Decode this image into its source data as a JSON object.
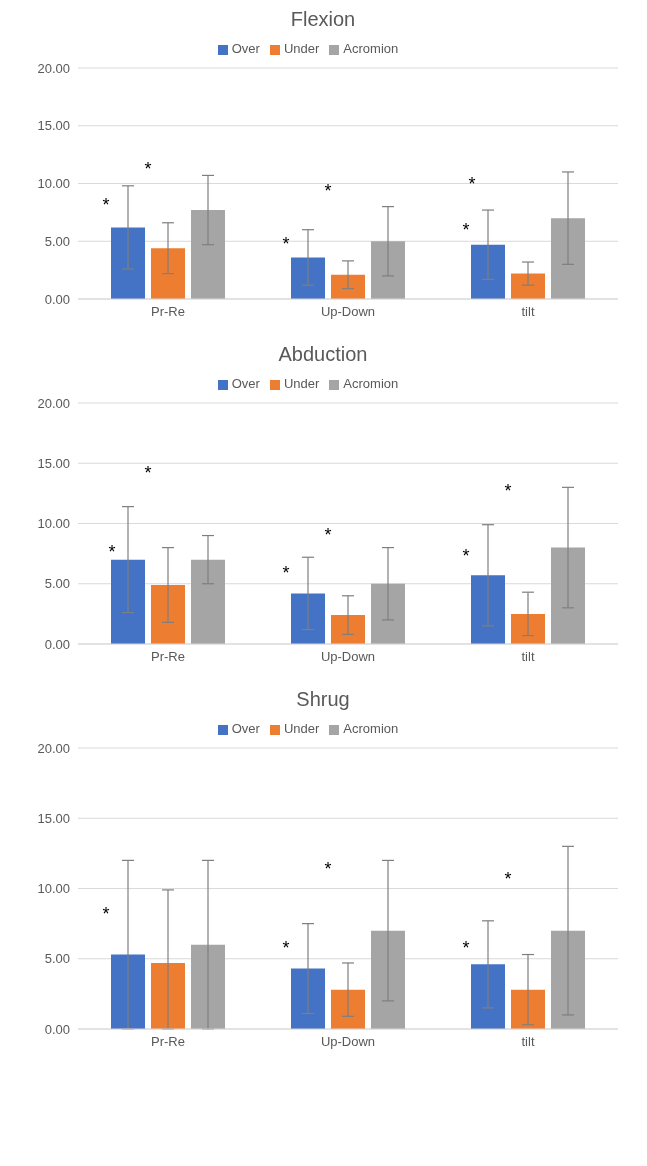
{
  "chart_data": [
    {
      "type": "bar",
      "title": "Flexion",
      "categories": [
        "Pr-Re",
        "Up-Down",
        "tilt"
      ],
      "series": [
        {
          "name": "Over",
          "color": "#4472c4",
          "values": [
            6.2,
            3.6,
            4.7
          ],
          "errors": [
            3.6,
            2.4,
            3
          ]
        },
        {
          "name": "Under",
          "color": "#ed7d31",
          "values": [
            4.4,
            2.1,
            2.2
          ],
          "errors": [
            2.2,
            1.2,
            1
          ]
        },
        {
          "name": "Acromion",
          "color": "#a5a5a5",
          "values": [
            7.7,
            5,
            7
          ],
          "errors": [
            3,
            3,
            4
          ]
        }
      ],
      "ylim": [
        0,
        20
      ],
      "yticks": [
        {
          "value": 0,
          "label": "0.00"
        },
        {
          "value": 5,
          "label": "5.00"
        },
        {
          "value": 10,
          "label": "10.00"
        },
        {
          "value": 15,
          "label": "15.00"
        },
        {
          "value": 20,
          "label": "20.00"
        }
      ],
      "grid": "y",
      "legend": "top",
      "annotations": [
        "*",
        "*",
        "*",
        "*",
        "*",
        "*"
      ]
    },
    {
      "type": "bar",
      "title": "Abduction",
      "categories": [
        "Pr-Re",
        "Up-Down",
        "tilt"
      ],
      "series": [
        {
          "name": "Over",
          "color": "#4472c4",
          "values": [
            7,
            4.2,
            5.7
          ],
          "errors": [
            4.4,
            3,
            4.2
          ]
        },
        {
          "name": "Under",
          "color": "#ed7d31",
          "values": [
            4.9,
            2.4,
            2.5
          ],
          "errors": [
            3.1,
            1.6,
            1.8
          ]
        },
        {
          "name": "Acromion",
          "color": "#a5a5a5",
          "values": [
            7,
            5,
            8
          ],
          "errors": [
            2,
            3,
            5
          ]
        }
      ],
      "ylim": [
        0,
        20
      ],
      "yticks": [
        {
          "value": 0,
          "label": "0.00"
        },
        {
          "value": 5,
          "label": "5.00"
        },
        {
          "value": 10,
          "label": "10.00"
        },
        {
          "value": 15,
          "label": "15.00"
        },
        {
          "value": 20,
          "label": "20.00"
        }
      ],
      "grid": "y",
      "legend": "top",
      "annotations": [
        "*",
        "*",
        "*",
        "*",
        "*",
        "*"
      ]
    },
    {
      "type": "bar",
      "title": "Shrug",
      "categories": [
        "Pr-Re",
        "Up-Down",
        "tilt"
      ],
      "series": [
        {
          "name": "Over",
          "color": "#4472c4",
          "values": [
            5.3,
            4.3,
            4.6
          ],
          "errors": [
            [
              0,
              12
            ],
            3.2,
            3.1
          ]
        },
        {
          "name": "Under",
          "color": "#ed7d31",
          "values": [
            4.7,
            2.8,
            2.8
          ],
          "errors": [
            [
              0,
              9.9
            ],
            1.9,
            2.5
          ]
        },
        {
          "name": "Acromion",
          "color": "#a5a5a5",
          "values": [
            6,
            7,
            7
          ],
          "errors": [
            6,
            5,
            6
          ]
        }
      ],
      "ylim": [
        0,
        20
      ],
      "yticks": [
        {
          "value": 0,
          "label": "0.00"
        },
        {
          "value": 5,
          "label": "5.00"
        },
        {
          "value": 10,
          "label": "10.00"
        },
        {
          "value": 15,
          "label": "15.00"
        },
        {
          "value": 20,
          "label": "20.00"
        }
      ],
      "grid": "y",
      "legend": "top",
      "annotations": [
        "*",
        "*",
        "*",
        "*",
        "*"
      ]
    }
  ]
}
